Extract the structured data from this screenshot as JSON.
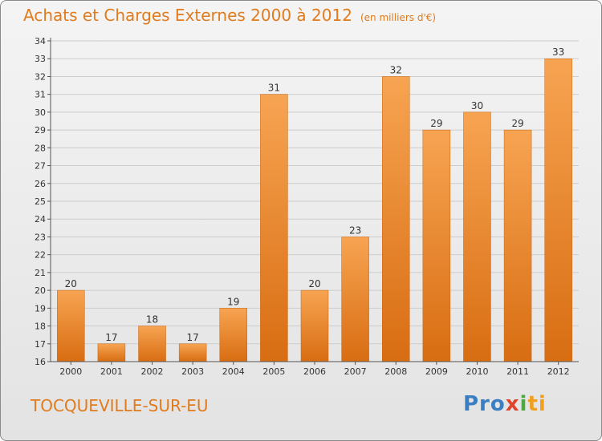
{
  "header": {
    "title": "Achats et Charges Externes 2000 à 2012",
    "unit": "(en milliers d'€)"
  },
  "footer": {
    "city": "TOCQUEVILLE-SUR-EU",
    "logo_text": "Proxiti"
  },
  "colors": {
    "bar_top": "#f7a452",
    "bar_bottom": "#d86d12",
    "title": "#e07b1e",
    "grid": "#cccccc"
  },
  "chart_data": {
    "type": "bar",
    "title": "Achats et Charges Externes 2000 à 2012",
    "subtitle": "(en milliers d'€)",
    "categories": [
      "2000",
      "2001",
      "2002",
      "2003",
      "2004",
      "2005",
      "2006",
      "2007",
      "2008",
      "2009",
      "2010",
      "2011",
      "2012"
    ],
    "values": [
      20,
      17,
      18,
      17,
      19,
      31,
      20,
      23,
      32,
      29,
      30,
      29,
      33
    ],
    "ylim": [
      16,
      34
    ],
    "yticks": [
      16,
      17,
      18,
      19,
      20,
      21,
      22,
      23,
      24,
      25,
      26,
      27,
      28,
      29,
      30,
      31,
      32,
      33,
      34
    ],
    "grid": true,
    "data_labels": true
  }
}
